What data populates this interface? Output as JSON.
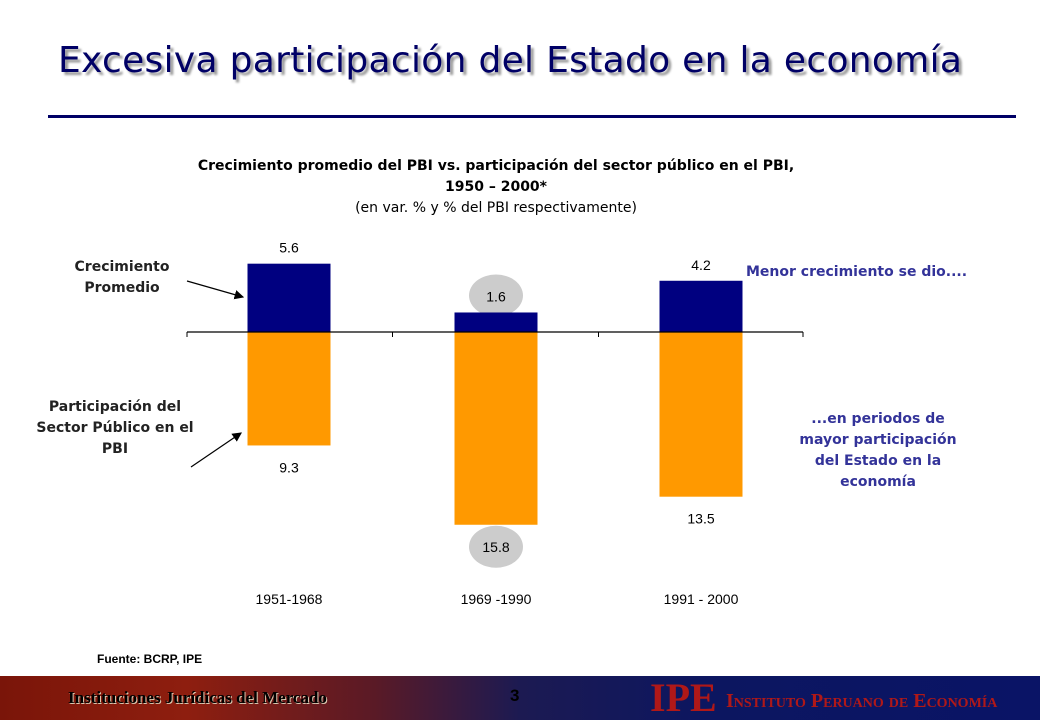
{
  "slide": {
    "title": "Excesiva participación del Estado en la economía",
    "source": "Fuente: BCRP, IPE"
  },
  "labels": {
    "growth": "Crecimiento Promedio",
    "participation": "Participación del Sector Público en el PBI"
  },
  "notes": {
    "top": "Menor crecimiento se dio....",
    "bottom": "...en periodos de mayor participación del Estado en la economía"
  },
  "chart_data": {
    "type": "bar",
    "title": "Crecimiento promedio del PBI vs. participación del sector público en el PBI, 1950 – 2000*",
    "subtitle": "(en var. % y % del PBI respectivamente)",
    "categories": [
      "1951-1968",
      "1969 -1990",
      "1991 - 2000"
    ],
    "series": [
      {
        "name": "Crecimiento Promedio",
        "values": [
          5.6,
          1.6,
          4.2
        ],
        "direction": "up",
        "color": "#000080"
      },
      {
        "name": "Participación del Sector Público en el PBI",
        "values": [
          9.3,
          15.8,
          13.5
        ],
        "direction": "down",
        "color": "#FF9900"
      }
    ],
    "value_labels": {
      "Crecimiento Promedio": [
        "5.6",
        "1.6",
        "4.2"
      ],
      "Participación del Sector Público en el PBI": [
        "9.3",
        "15.8",
        "13.5"
      ]
    },
    "highlighted_category": "1969 -1990",
    "highlight_color": "#CCCCCC",
    "grid": false,
    "legend": "none"
  },
  "footer": {
    "left_text": "Instituciones Jurídicas del Mercado",
    "page_number": "3",
    "logo_mark": "IPE",
    "logo_text": "Instituto Peruano de Economía"
  }
}
